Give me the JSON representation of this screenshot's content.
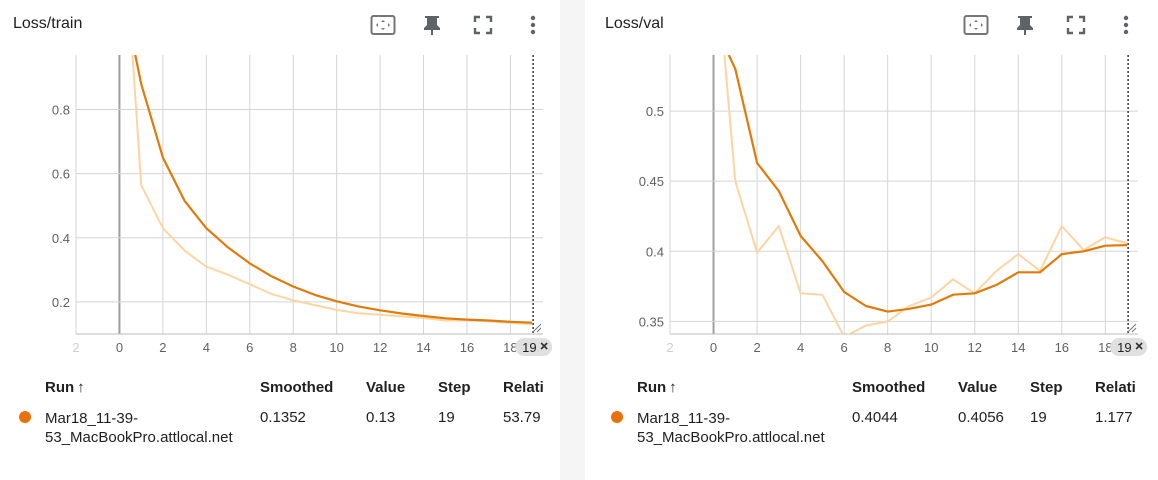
{
  "colors": {
    "smoothed": "#e07b0a",
    "raw": "#fbd5a4",
    "grid": "#d5d5d5",
    "axis": "#888888",
    "run_dot": "#e8710a"
  },
  "cards": [
    {
      "title": "Loss/train",
      "icons": [
        "fit-domain-icon",
        "pin-icon",
        "fullscreen-icon",
        "more-vert-icon"
      ],
      "x_tick_labels": [
        "2",
        "0",
        "2",
        "4",
        "6",
        "8",
        "10",
        "12",
        "14",
        "16",
        "18"
      ],
      "step_chip": "19",
      "legend": {
        "headers": {
          "run": "Run",
          "smoothed": "Smoothed",
          "value": "Value",
          "step": "Step",
          "relative": "Relati"
        },
        "row": {
          "run_line1": "Mar18_11-39-",
          "run_line2": "53_MacBookPro.attlocal.net",
          "smoothed": "0.1352",
          "value": "0.13",
          "step": "19",
          "relative": "53.79"
        }
      }
    },
    {
      "title": "Loss/val",
      "icons": [
        "fit-domain-icon",
        "pin-icon",
        "fullscreen-icon",
        "more-vert-icon"
      ],
      "x_tick_labels": [
        "2",
        "0",
        "2",
        "4",
        "6",
        "8",
        "10",
        "12",
        "14",
        "16",
        "18"
      ],
      "step_chip": "19",
      "legend": {
        "headers": {
          "run": "Run",
          "smoothed": "Smoothed",
          "value": "Value",
          "step": "Step",
          "relative": "Relati"
        },
        "row": {
          "run_line1": "Mar18_11-39-",
          "run_line2": "53_MacBookPro.attlocal.net",
          "smoothed": "0.4044",
          "value": "0.4056",
          "step": "19",
          "relative": "1.177"
        }
      }
    }
  ],
  "chart_data": [
    {
      "type": "line",
      "title": "Loss/train",
      "xlim": [
        -2,
        19.5
      ],
      "ylim": [
        0.1,
        0.97
      ],
      "x_ticks": [
        -2,
        0,
        2,
        4,
        6,
        8,
        10,
        12,
        14,
        16,
        18
      ],
      "y_ticks": [
        0.2,
        0.4,
        0.6,
        0.8
      ],
      "y_tick_labels": [
        "0.2",
        "0.4",
        "0.6",
        "0.8"
      ],
      "grid": true,
      "series": [
        {
          "role": "raw",
          "x": [
            0.6,
            1,
            2,
            3,
            4,
            5,
            6,
            7,
            8,
            9,
            10,
            11,
            12,
            13,
            14,
            15,
            16,
            17,
            18,
            19
          ],
          "y": [
            0.97,
            0.565,
            0.43,
            0.36,
            0.31,
            0.285,
            0.255,
            0.225,
            0.205,
            0.19,
            0.175,
            0.165,
            0.16,
            0.155,
            0.15,
            0.142,
            0.142,
            0.14,
            0.135,
            0.13
          ]
        },
        {
          "role": "smoothed",
          "x": [
            0.7,
            1,
            2,
            3,
            4,
            5,
            6,
            7,
            8,
            9,
            10,
            11,
            12,
            13,
            14,
            15,
            16,
            17,
            18,
            19
          ],
          "y": [
            0.98,
            0.88,
            0.65,
            0.515,
            0.43,
            0.37,
            0.32,
            0.28,
            0.248,
            0.222,
            0.202,
            0.186,
            0.174,
            0.164,
            0.156,
            0.149,
            0.145,
            0.142,
            0.138,
            0.1352
          ]
        }
      ]
    },
    {
      "type": "line",
      "title": "Loss/val",
      "xlim": [
        -2,
        19.5
      ],
      "ylim": [
        0.341,
        0.54
      ],
      "x_ticks": [
        -2,
        0,
        2,
        4,
        6,
        8,
        10,
        12,
        14,
        16,
        18
      ],
      "y_ticks": [
        0.35,
        0.4,
        0.45,
        0.5
      ],
      "y_tick_labels": [
        "0.35",
        "0.4",
        "0.45",
        "0.5"
      ],
      "grid": true,
      "series": [
        {
          "role": "raw",
          "x": [
            0.5,
            1,
            2,
            3,
            4,
            5,
            6,
            7,
            8,
            9,
            10,
            11,
            12,
            13,
            14,
            15,
            16,
            17,
            18,
            19
          ],
          "y": [
            0.54,
            0.45,
            0.399,
            0.418,
            0.37,
            0.369,
            0.339,
            0.347,
            0.35,
            0.361,
            0.367,
            0.38,
            0.37,
            0.386,
            0.398,
            0.386,
            0.418,
            0.401,
            0.41,
            0.4056
          ]
        },
        {
          "role": "smoothed",
          "x": [
            0.7,
            1,
            2,
            3,
            4,
            5,
            6,
            7,
            8,
            9,
            10,
            11,
            12,
            13,
            14,
            15,
            16,
            17,
            18,
            19
          ],
          "y": [
            0.54,
            0.53,
            0.463,
            0.443,
            0.411,
            0.393,
            0.371,
            0.361,
            0.357,
            0.359,
            0.362,
            0.369,
            0.37,
            0.376,
            0.385,
            0.385,
            0.398,
            0.4,
            0.404,
            0.4044
          ]
        }
      ]
    }
  ]
}
